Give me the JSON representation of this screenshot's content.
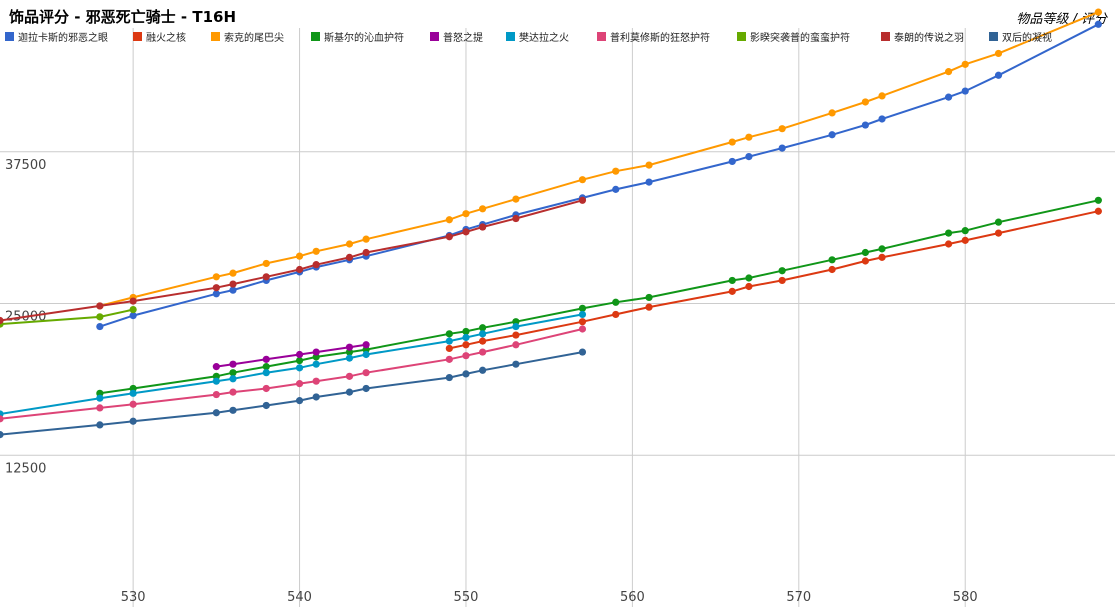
{
  "chart_data": {
    "type": "line",
    "title": "饰品评分 - 邪恶死亡骑士 - T16H",
    "subtitle": "物品等级 / 评分",
    "x_ticks": [
      530,
      540,
      550,
      560,
      570,
      580
    ],
    "y_ticks": [
      12500,
      25000,
      37500
    ],
    "xlim": [
      522,
      589
    ],
    "ylim": [
      0,
      50000
    ],
    "grid": true,
    "legend_position": "top",
    "series": [
      {
        "name": "迦拉卡斯的邪恶之眼",
        "color": "#3366cc",
        "x": [
          528,
          530,
          535,
          536,
          538,
          540,
          541,
          543,
          544,
          549,
          550,
          551,
          553,
          557,
          559,
          561,
          566,
          567,
          569,
          572,
          574,
          575,
          579,
          580,
          582,
          588
        ],
        "y": [
          23100,
          24000,
          25800,
          26100,
          26900,
          27600,
          28000,
          28600,
          28900,
          30600,
          31100,
          31500,
          32300,
          33700,
          34400,
          35000,
          36700,
          37100,
          37800,
          38900,
          39700,
          40200,
          42000,
          42500,
          43800,
          48000
        ]
      },
      {
        "name": "融火之核",
        "color": "#dc3912",
        "x": [
          549,
          550,
          551,
          553,
          557,
          559,
          561,
          566,
          567,
          569,
          572,
          574,
          575,
          579,
          580,
          582,
          588
        ],
        "y": [
          21300,
          21600,
          21900,
          22400,
          23500,
          24100,
          24700,
          26000,
          26400,
          26900,
          27800,
          28500,
          28800,
          29900,
          30200,
          30800,
          32600
        ]
      },
      {
        "name": "索克的尾巴尖",
        "color": "#ff9900",
        "x": [
          528,
          530,
          535,
          536,
          538,
          540,
          541,
          543,
          544,
          549,
          550,
          551,
          553,
          557,
          559,
          561,
          566,
          567,
          569,
          572,
          574,
          575,
          579,
          580,
          582,
          588
        ],
        "y": [
          24800,
          25500,
          27200,
          27500,
          28300,
          28900,
          29300,
          29900,
          30300,
          31900,
          32400,
          32800,
          33600,
          35200,
          35900,
          36400,
          38300,
          38700,
          39400,
          40700,
          41600,
          42100,
          44100,
          44700,
          45600,
          49000
        ]
      },
      {
        "name": "斯基尔的沁血护符",
        "color": "#109618",
        "x": [
          528,
          530,
          535,
          536,
          538,
          540,
          541,
          543,
          544,
          549,
          550,
          551,
          553,
          557,
          559,
          561,
          566,
          567,
          569,
          572,
          574,
          575,
          579,
          580,
          582,
          588
        ],
        "y": [
          17600,
          18000,
          19000,
          19300,
          19800,
          20300,
          20600,
          21000,
          21200,
          22500,
          22700,
          23000,
          23500,
          24600,
          25100,
          25500,
          26900,
          27100,
          27700,
          28600,
          29200,
          29500,
          30800,
          31000,
          31700,
          33500
        ]
      },
      {
        "name": "普怒之提",
        "color": "#990099",
        "x": [
          535,
          536,
          538,
          540,
          541,
          543,
          544
        ],
        "y": [
          19800,
          20000,
          20400,
          20800,
          21000,
          21400,
          21600
        ]
      },
      {
        "name": "樊达拉之火",
        "color": "#0099c6",
        "x": [
          522,
          528,
          530,
          535,
          536,
          538,
          540,
          541,
          543,
          544,
          549,
          550,
          551,
          553,
          557
        ],
        "y": [
          15900,
          17200,
          17600,
          18600,
          18800,
          19300,
          19700,
          20000,
          20500,
          20800,
          21900,
          22200,
          22500,
          23100,
          24100
        ]
      },
      {
        "name": "普利莫修斯的狂怒护符",
        "color": "#dd4477",
        "x": [
          522,
          528,
          530,
          535,
          536,
          538,
          540,
          541,
          543,
          544,
          549,
          550,
          551,
          553,
          557
        ],
        "y": [
          15500,
          16400,
          16700,
          17500,
          17700,
          18000,
          18400,
          18600,
          19000,
          19300,
          20400,
          20700,
          21000,
          21600,
          22900
        ]
      },
      {
        "name": "影睽突袭普的蛮蛮护符",
        "color": "#66aa00",
        "x": [
          522,
          528,
          530
        ],
        "y": [
          23300,
          23900,
          24500
        ]
      },
      {
        "name": "泰朗的传说之羽",
        "color": "#b82e2e",
        "x": [
          522,
          528,
          530,
          535,
          536,
          538,
          540,
          541,
          543,
          544,
          549,
          550,
          551,
          553,
          557
        ],
        "y": [
          23600,
          24800,
          25200,
          26300,
          26600,
          27200,
          27800,
          28200,
          28800,
          29200,
          30500,
          30900,
          31300,
          32000,
          33500
        ]
      },
      {
        "name": "双后的凝视",
        "color": "#316395",
        "x": [
          522,
          528,
          530,
          535,
          536,
          538,
          540,
          541,
          543,
          544,
          549,
          550,
          551,
          553,
          557
        ],
        "y": [
          14200,
          15000,
          15300,
          16000,
          16200,
          16600,
          17000,
          17300,
          17700,
          18000,
          18900,
          19200,
          19500,
          20000,
          21000
        ]
      }
    ]
  }
}
